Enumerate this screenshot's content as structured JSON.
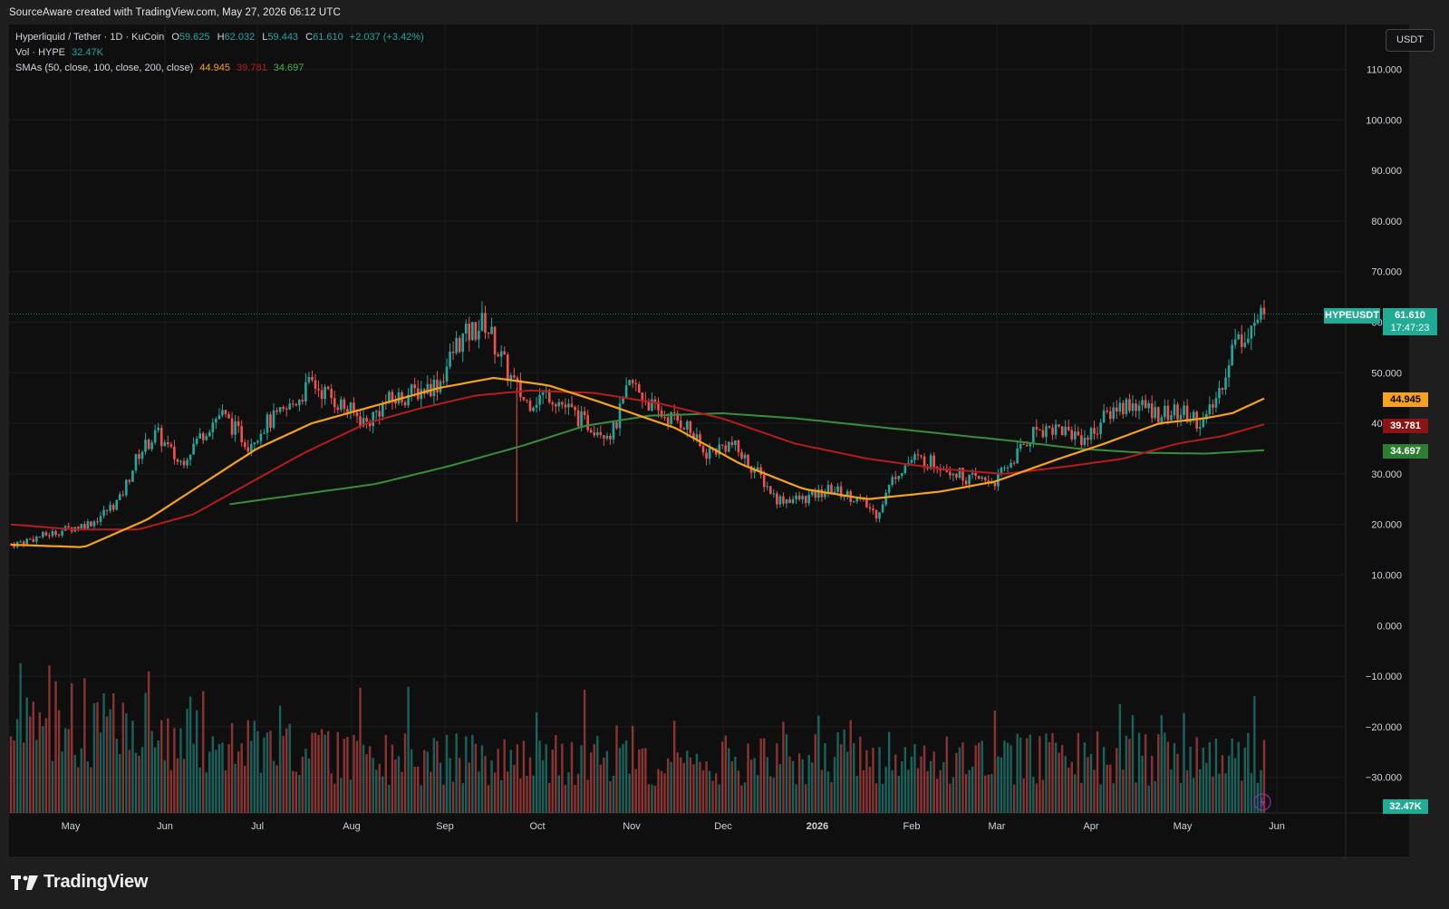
{
  "header": {
    "created_text": "SourceAware created with TradingView.com, May 27, 2026 06:12 UTC"
  },
  "legend": {
    "title": "Hyperliquid / Tether · 1D · KuCoin",
    "o_label": "O",
    "o_value": "59.625",
    "h_label": "H",
    "h_value": "62.032",
    "l_label": "L",
    "l_value": "59.443",
    "c_label": "C",
    "c_value": "61.610",
    "change": "+2.037 (+3.42%)",
    "vol_label": "Vol · HYPE",
    "vol_value": "32.47K",
    "sma_label": "SMAs (50, close, 100, close, 200, close)",
    "sma50_value": "44.945",
    "sma100_value": "39.781",
    "sma200_value": "34.697"
  },
  "currency_button": "USDT",
  "price_labels": {
    "symbol": "HYPEUSDT",
    "last": "61.610",
    "countdown": "17:47:23",
    "sma50": "44.945",
    "sma100": "39.781",
    "sma200": "34.697",
    "volume": "32.47K"
  },
  "colors": {
    "up": "#26a69a",
    "down": "#ef5350",
    "sma50": "#f7a21b",
    "sma100": "#b71c1c",
    "sma200": "#388e3c",
    "last_price": "#22ab94",
    "background": "#0f0f0f"
  },
  "footer": {
    "brand": "TradingView"
  },
  "chart_data": {
    "type": "candlestick",
    "symbol": "HYPEUSDT",
    "timeframe": "1D",
    "exchange": "KuCoin",
    "y_ticks": [
      "110.000",
      "100.000",
      "90.000",
      "80.000",
      "70.000",
      "60.000",
      "50.000",
      "40.000",
      "30.000",
      "20.000",
      "10.000",
      "0.000",
      "−10.000",
      "−20.000",
      "−30.000"
    ],
    "x_ticks": [
      "May",
      "Jun",
      "Jul",
      "Aug",
      "Sep",
      "Oct",
      "Nov",
      "Dec",
      "2026",
      "Feb",
      "Mar",
      "Apr",
      "May",
      "Jun"
    ],
    "ylim": [
      -36,
      116
    ],
    "x_range_months": [
      0,
      13.4
    ],
    "grid": true,
    "close_key_points": [
      [
        0,
        16
      ],
      [
        0.4,
        18
      ],
      [
        0.9,
        20.5
      ],
      [
        1.2,
        25
      ],
      [
        1.4,
        34
      ],
      [
        1.6,
        38
      ],
      [
        1.85,
        32
      ],
      [
        2.1,
        38
      ],
      [
        2.3,
        42
      ],
      [
        2.6,
        36
      ],
      [
        2.8,
        40
      ],
      [
        3.0,
        42
      ],
      [
        3.3,
        48
      ],
      [
        3.6,
        44
      ],
      [
        3.9,
        40
      ],
      [
        4.1,
        44
      ],
      [
        4.4,
        46
      ],
      [
        4.7,
        48
      ],
      [
        4.9,
        56
      ],
      [
        5.2,
        60
      ],
      [
        5.45,
        50
      ],
      [
        5.65,
        44
      ],
      [
        5.9,
        46
      ],
      [
        6.1,
        43
      ],
      [
        6.3,
        40
      ],
      [
        6.6,
        38
      ],
      [
        6.8,
        48
      ],
      [
        7.1,
        42
      ],
      [
        7.4,
        40
      ],
      [
        7.6,
        34
      ],
      [
        7.9,
        36
      ],
      [
        8.2,
        30
      ],
      [
        8.4,
        25
      ],
      [
        8.7,
        25
      ],
      [
        9.0,
        27
      ],
      [
        9.3,
        25
      ],
      [
        9.5,
        22
      ],
      [
        9.7,
        30
      ],
      [
        9.9,
        33
      ],
      [
        10.2,
        32
      ],
      [
        10.5,
        29
      ],
      [
        10.8,
        28.5
      ],
      [
        11.0,
        33
      ],
      [
        11.25,
        39
      ],
      [
        11.5,
        39
      ],
      [
        11.8,
        37
      ],
      [
        12.1,
        43
      ],
      [
        12.3,
        44
      ],
      [
        12.6,
        42
      ],
      [
        12.85,
        42
      ],
      [
        13.1,
        40
      ],
      [
        13.25,
        46
      ],
      [
        13.4,
        55
      ],
      [
        13.6,
        59
      ],
      [
        13.75,
        61.6
      ]
    ],
    "sma50": [
      [
        0,
        16
      ],
      [
        0.8,
        15.5
      ],
      [
        1.5,
        21
      ],
      [
        2.1,
        28
      ],
      [
        2.7,
        35
      ],
      [
        3.3,
        40
      ],
      [
        4.1,
        44
      ],
      [
        4.7,
        47
      ],
      [
        5.3,
        49
      ],
      [
        5.9,
        47.5
      ],
      [
        6.5,
        44
      ],
      [
        7.3,
        39
      ],
      [
        8.0,
        32
      ],
      [
        8.7,
        27
      ],
      [
        9.4,
        25
      ],
      [
        10.2,
        26.5
      ],
      [
        10.8,
        28.5
      ],
      [
        11.5,
        33
      ],
      [
        12.0,
        36
      ],
      [
        12.6,
        40
      ],
      [
        13.1,
        41
      ],
      [
        13.4,
        42
      ],
      [
        13.75,
        44.9
      ]
    ],
    "sma100": [
      [
        0,
        20
      ],
      [
        0.7,
        19
      ],
      [
        1.4,
        19
      ],
      [
        2.0,
        22
      ],
      [
        2.6,
        28
      ],
      [
        3.2,
        34
      ],
      [
        3.9,
        40
      ],
      [
        4.5,
        43
      ],
      [
        5.1,
        45.5
      ],
      [
        5.7,
        46.5
      ],
      [
        6.4,
        46
      ],
      [
        7.1,
        44
      ],
      [
        7.8,
        41
      ],
      [
        8.6,
        36
      ],
      [
        9.4,
        33
      ],
      [
        10.2,
        31
      ],
      [
        10.9,
        30
      ],
      [
        11.6,
        31.5
      ],
      [
        12.2,
        33
      ],
      [
        12.8,
        36
      ],
      [
        13.3,
        37.5
      ],
      [
        13.75,
        39.8
      ]
    ],
    "sma200": [
      [
        2.4,
        24
      ],
      [
        3.2,
        26
      ],
      [
        4.0,
        28
      ],
      [
        4.8,
        31.5
      ],
      [
        5.6,
        35.5
      ],
      [
        6.3,
        39.5
      ],
      [
        7.0,
        41.5
      ],
      [
        7.8,
        42
      ],
      [
        8.6,
        41
      ],
      [
        9.4,
        39.5
      ],
      [
        10.2,
        38
      ],
      [
        11.0,
        36.5
      ],
      [
        11.7,
        35
      ],
      [
        12.4,
        34.2
      ],
      [
        13.1,
        34
      ],
      [
        13.75,
        34.7
      ]
    ],
    "last": 61.61,
    "volume_last": "32.47K"
  }
}
